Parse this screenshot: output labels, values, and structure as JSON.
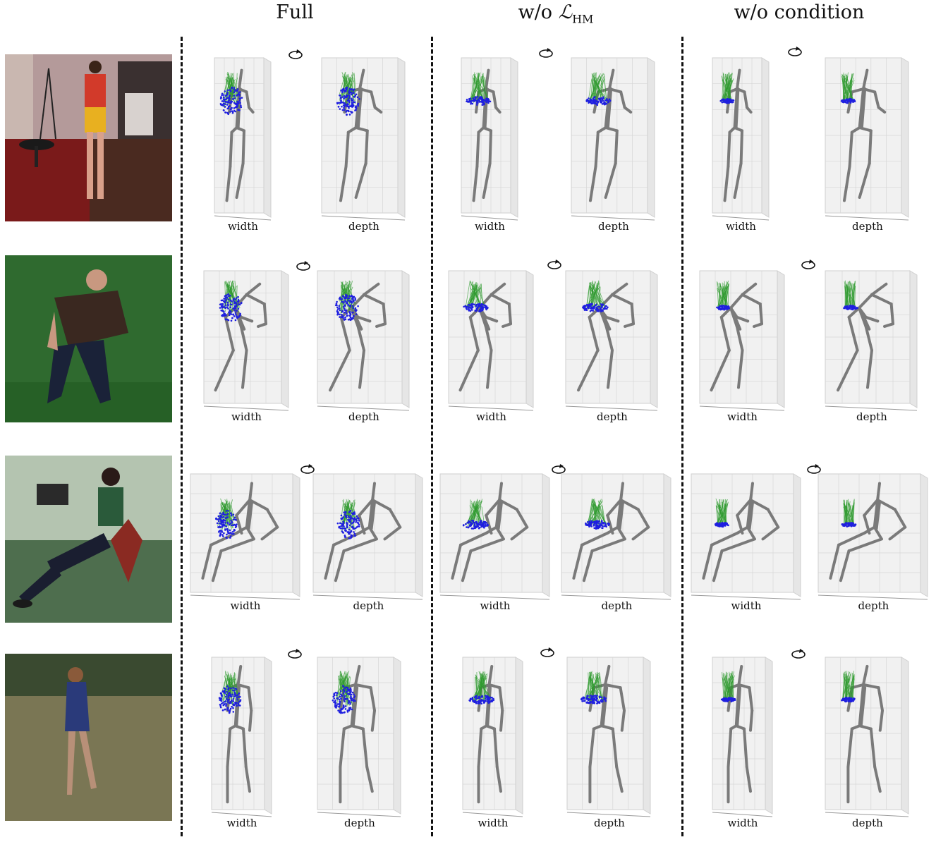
{
  "headers": {
    "full": "Full",
    "wo_hm_prefix": "w/o ",
    "wo_hm_symbol": "ℒ",
    "wo_hm_sub": "HM",
    "wo_condition": "w/o condition"
  },
  "axis_labels": {
    "width": "width",
    "depth": "depth"
  },
  "colors": {
    "skeleton": "#7a7a7a",
    "samples": "#1f1fe0",
    "hypotheses": "#2e9a2e",
    "grid": "#d6d6d6",
    "box": "#f1f1f1"
  },
  "icons": {
    "rotate": "rotate-icon"
  },
  "photos": [
    {
      "scene": "red-studio"
    },
    {
      "scene": "green-screen"
    },
    {
      "scene": "green-chair"
    },
    {
      "scene": "outdoor-field"
    }
  ]
}
